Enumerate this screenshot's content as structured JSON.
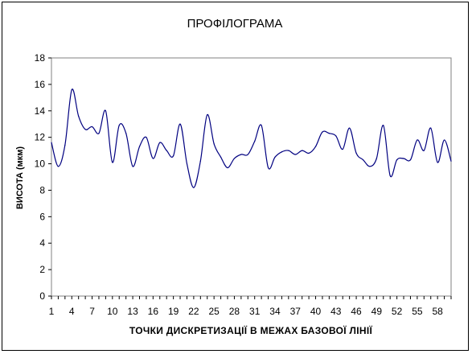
{
  "chart_data": {
    "type": "line",
    "title": "ПРОФІЛОГРАМА",
    "xlabel": "ТОЧКИ  ДИСКРЕТИЗАЦІЇ  В  МЕЖАХ  БАЗОВОЇ  ЛІНІЇ",
    "ylabel": "ВИСОТА (мкм)",
    "ylim": [
      0,
      18
    ],
    "yticks": [
      0,
      2,
      4,
      6,
      8,
      10,
      12,
      14,
      16,
      18
    ],
    "xlim": [
      1,
      60
    ],
    "xticks": [
      1,
      4,
      7,
      10,
      13,
      16,
      19,
      22,
      25,
      28,
      31,
      34,
      37,
      40,
      43,
      46,
      49,
      52,
      55,
      58
    ],
    "grid": false,
    "legend": "none",
    "line_color": "#000080",
    "x": [
      1,
      2,
      3,
      4,
      5,
      6,
      7,
      8,
      9,
      10,
      11,
      12,
      13,
      14,
      15,
      16,
      17,
      18,
      19,
      20,
      21,
      22,
      23,
      24,
      25,
      26,
      27,
      28,
      29,
      30,
      31,
      32,
      33,
      34,
      35,
      36,
      37,
      38,
      39,
      40,
      41,
      42,
      43,
      44,
      45,
      46,
      47,
      48,
      49,
      50,
      51,
      52,
      53,
      54,
      55,
      56,
      57,
      58,
      59,
      60
    ],
    "values": [
      11.6,
      9.8,
      11.4,
      15.6,
      13.6,
      12.6,
      12.8,
      12.3,
      14.0,
      10.1,
      12.9,
      12.3,
      9.8,
      11.3,
      12.0,
      10.4,
      11.6,
      11.0,
      10.6,
      13.0,
      10.0,
      8.2,
      10.2,
      13.7,
      11.5,
      10.5,
      9.7,
      10.4,
      10.7,
      10.7,
      11.7,
      12.9,
      9.7,
      10.5,
      10.9,
      11.0,
      10.7,
      11.0,
      10.8,
      11.3,
      12.4,
      12.3,
      12.1,
      11.1,
      12.7,
      10.8,
      10.3,
      9.8,
      10.4,
      12.9,
      9.1,
      10.3,
      10.4,
      10.3,
      11.8,
      11.0,
      12.7,
      10.1,
      11.8,
      10.2
    ]
  }
}
